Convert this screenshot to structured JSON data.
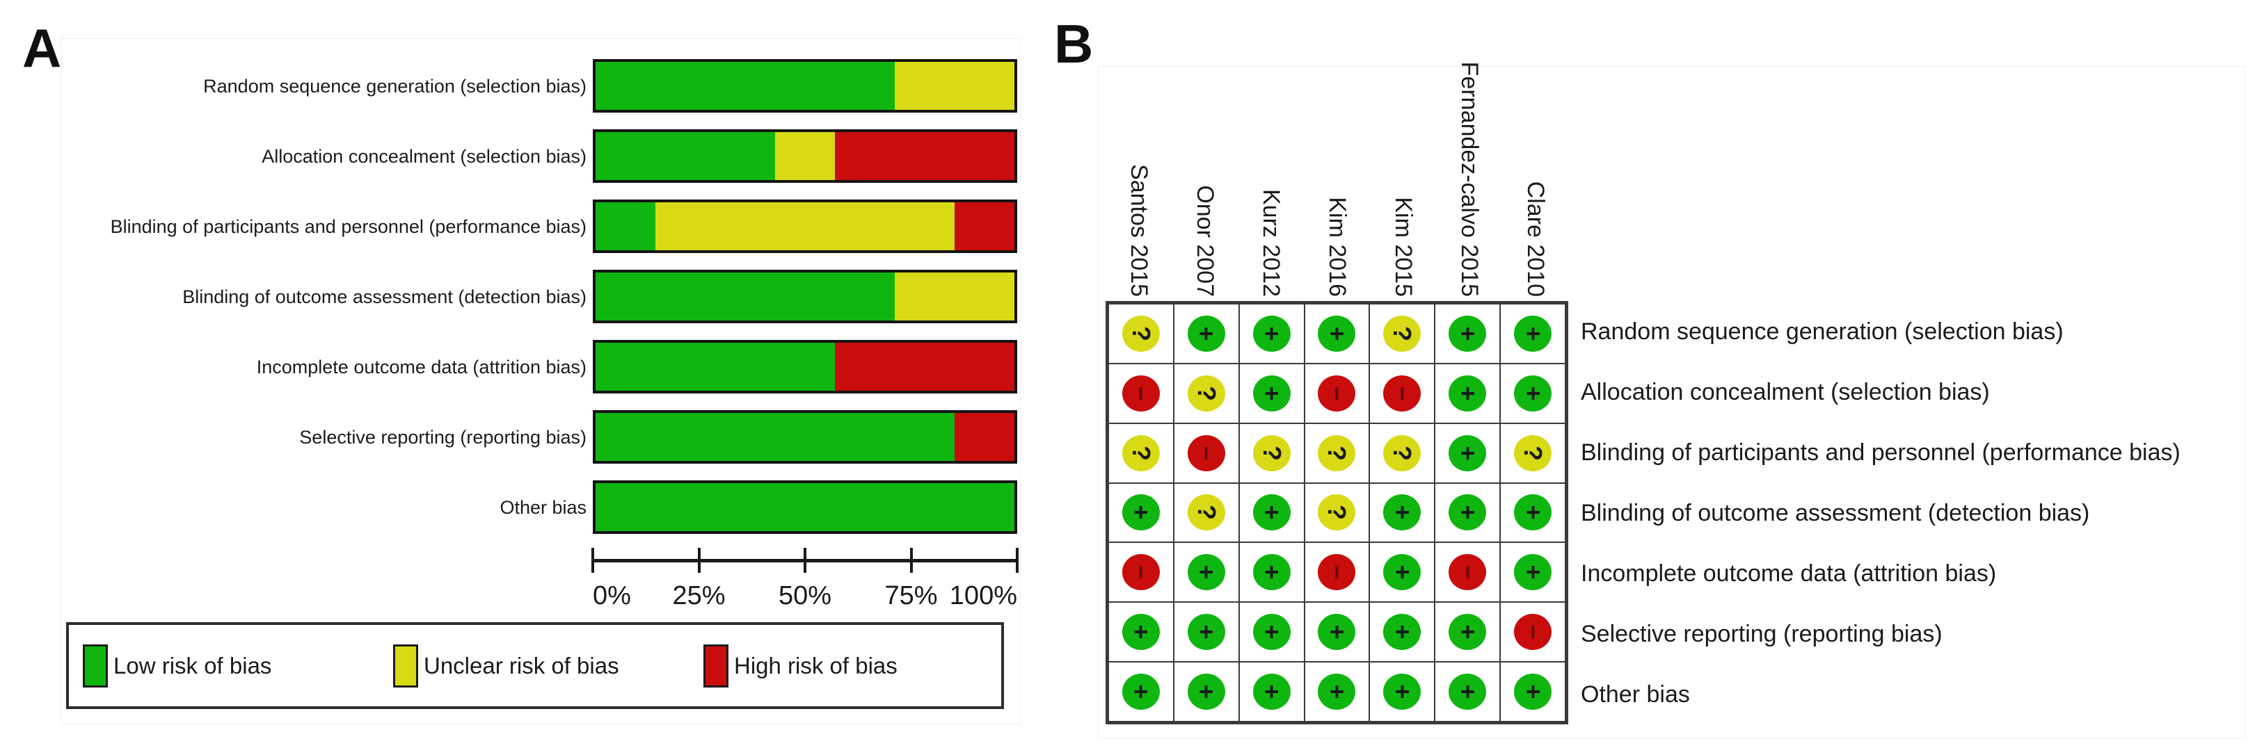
{
  "figure": {
    "panel_a_label": "A",
    "panel_b_label": "B"
  },
  "colors": {
    "low": "#0fb60f",
    "unclear": "#d9da16",
    "high": "#c90c0c"
  },
  "legend": {
    "items": [
      {
        "key": "low",
        "label": "Low risk of bias"
      },
      {
        "key": "unclear",
        "label": "Unclear risk of bias"
      },
      {
        "key": "high",
        "label": "High risk of bias"
      }
    ]
  },
  "bias_categories": [
    "Random sequence generation (selection bias)",
    "Allocation concealment (selection bias)",
    "Blinding of participants and personnel (performance bias)",
    "Blinding of outcome assessment (detection bias)",
    "Incomplete outcome data (attrition bias)",
    "Selective reporting (reporting bias)",
    "Other bias"
  ],
  "studies": [
    "Santos 2015",
    "Onor 2007",
    "Kurz 2012",
    "Kim 2016",
    "Kim 2015",
    "Fernandez-calvo 2015",
    "Clare 2010"
  ],
  "chart_data": [
    {
      "type": "bar",
      "subtype": "horizontal-stacked-percent",
      "panel": "A",
      "categories": [
        "Random sequence generation (selection bias)",
        "Allocation concealment (selection bias)",
        "Blinding of participants and personnel (performance bias)",
        "Blinding of outcome assessment (detection bias)",
        "Incomplete outcome data (attrition bias)",
        "Selective reporting (reporting bias)",
        "Other bias"
      ],
      "series": [
        {
          "name": "Low risk of bias",
          "key": "low",
          "values": [
            71.4,
            42.9,
            14.3,
            71.4,
            57.1,
            85.7,
            100
          ]
        },
        {
          "name": "Unclear risk of bias",
          "key": "unclear",
          "values": [
            28.6,
            14.3,
            71.4,
            28.6,
            0,
            0,
            0
          ]
        },
        {
          "name": "High risk of bias",
          "key": "high",
          "values": [
            0,
            42.9,
            14.3,
            0,
            42.9,
            14.3,
            0
          ]
        }
      ],
      "xlim": [
        0,
        100
      ],
      "x_tick_labels": [
        "0%",
        "25%",
        "50%",
        "75%",
        "100%"
      ],
      "grid": false,
      "legend_position": "bottom"
    },
    {
      "type": "heatmap",
      "subtype": "risk-of-bias-summary",
      "panel": "B",
      "columns": [
        "Santos 2015",
        "Onor 2007",
        "Kurz 2012",
        "Kim 2016",
        "Kim 2015",
        "Fernandez-calvo 2015",
        "Clare 2010"
      ],
      "rows": [
        "Random sequence generation (selection bias)",
        "Allocation concealment (selection bias)",
        "Blinding of participants and personnel (performance bias)",
        "Blinding of outcome assessment (detection bias)",
        "Incomplete outcome data (attrition bias)",
        "Selective reporting (reporting bias)",
        "Other bias"
      ],
      "cells": [
        [
          "?",
          "+",
          "+",
          "+",
          "?",
          "+",
          "+"
        ],
        [
          "-",
          "?",
          "+",
          "-",
          "-",
          "+",
          "+"
        ],
        [
          "?",
          "-",
          "?",
          "?",
          "?",
          "+",
          "?"
        ],
        [
          "+",
          "?",
          "+",
          "?",
          "+",
          "+",
          "+"
        ],
        [
          "-",
          "+",
          "+",
          "-",
          "+",
          "-",
          "+"
        ],
        [
          "+",
          "+",
          "+",
          "+",
          "+",
          "+",
          "-"
        ],
        [
          "+",
          "+",
          "+",
          "+",
          "+",
          "+",
          "+"
        ]
      ],
      "cell_legend": {
        "+": "Low risk of bias",
        "?": "Unclear risk of bias",
        "-": "High risk of bias"
      }
    }
  ]
}
